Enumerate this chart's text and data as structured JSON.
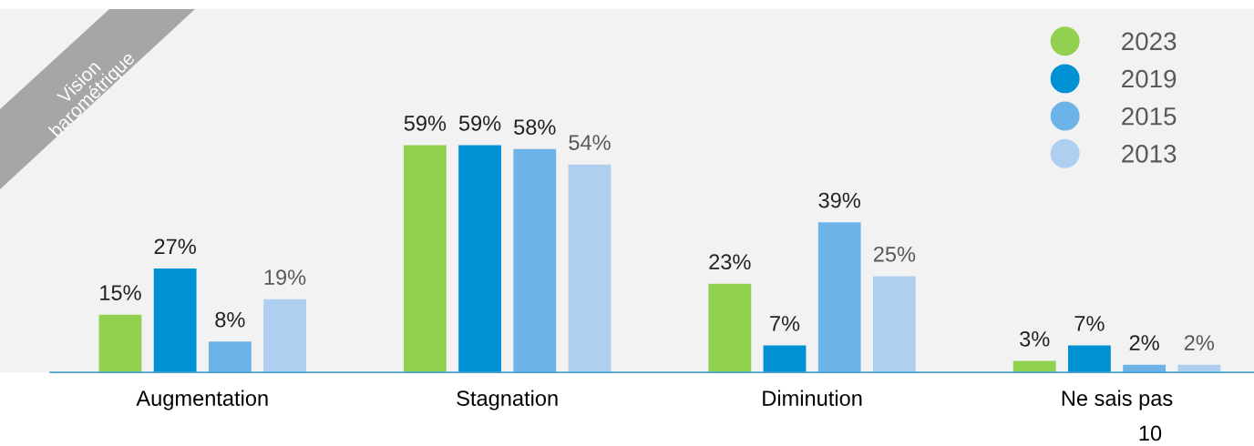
{
  "chart_data": {
    "type": "bar",
    "categories": [
      "Augmentation",
      "Stagnation",
      "Diminution",
      "Ne sais pas"
    ],
    "series": [
      {
        "name": "2023",
        "color": "#92d050",
        "values": [
          15,
          59,
          23,
          3
        ],
        "value_labels": [
          "15%",
          "59%",
          "23%",
          "3%"
        ]
      },
      {
        "name": "2019",
        "color": "#0091d5",
        "values": [
          27,
          59,
          7,
          7
        ],
        "value_labels": [
          "27%",
          "59%",
          "7%",
          "7%"
        ]
      },
      {
        "name": "2015",
        "color": "#6cb4e8",
        "values": [
          8,
          58,
          39,
          2
        ],
        "value_labels": [
          "8%",
          "58%",
          "39%",
          "2%"
        ]
      },
      {
        "name": "2013",
        "color": "#aecff0",
        "values": [
          19,
          54,
          25,
          2
        ],
        "value_labels": [
          "19%",
          "54%",
          "25%",
          "2%"
        ]
      }
    ],
    "legend": "top right",
    "grid": false,
    "annotations": [
      "Vision\nbarométrique",
      "10"
    ]
  }
}
